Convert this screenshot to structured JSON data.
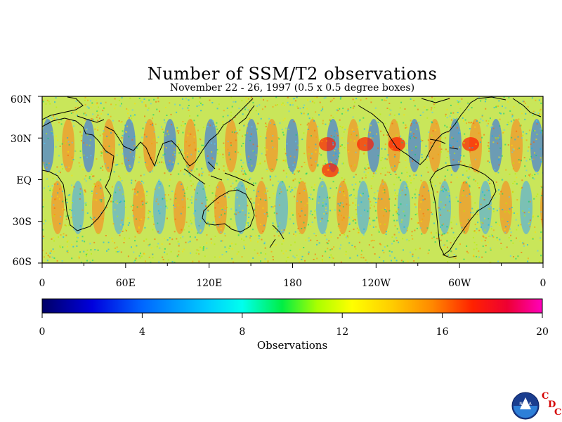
{
  "title": "Number of SSM/T2 observations",
  "subtitle": "November 22 - 26, 1997 (0.5 x 0.5 degree boxes)",
  "map": {
    "lat_labels": [
      "60N",
      "30N",
      "EQ",
      "30S",
      "60S"
    ],
    "lon_labels": [
      "0",
      "60E",
      "120E",
      "180",
      "120W",
      "60W",
      "0"
    ],
    "lat_range": [
      -60,
      60
    ],
    "lon_range": [
      0,
      360
    ]
  },
  "colorbar": {
    "label": "Observations",
    "ticks": [
      "0",
      "4",
      "8",
      "12",
      "16",
      "20"
    ],
    "range": [
      0,
      20
    ],
    "colors": [
      "#000066",
      "#0000cc",
      "#0055ff",
      "#00aaff",
      "#00ffff",
      "#00ff88",
      "#00ee00",
      "#88ff00",
      "#ffff00",
      "#ffcc00",
      "#ff9900",
      "#ff5500",
      "#ff0000",
      "#ee0066",
      "#ff00cc",
      "#ffffff"
    ]
  },
  "logo": {
    "text": "NOAA",
    "letters": [
      "C",
      "D",
      "C"
    ]
  }
}
